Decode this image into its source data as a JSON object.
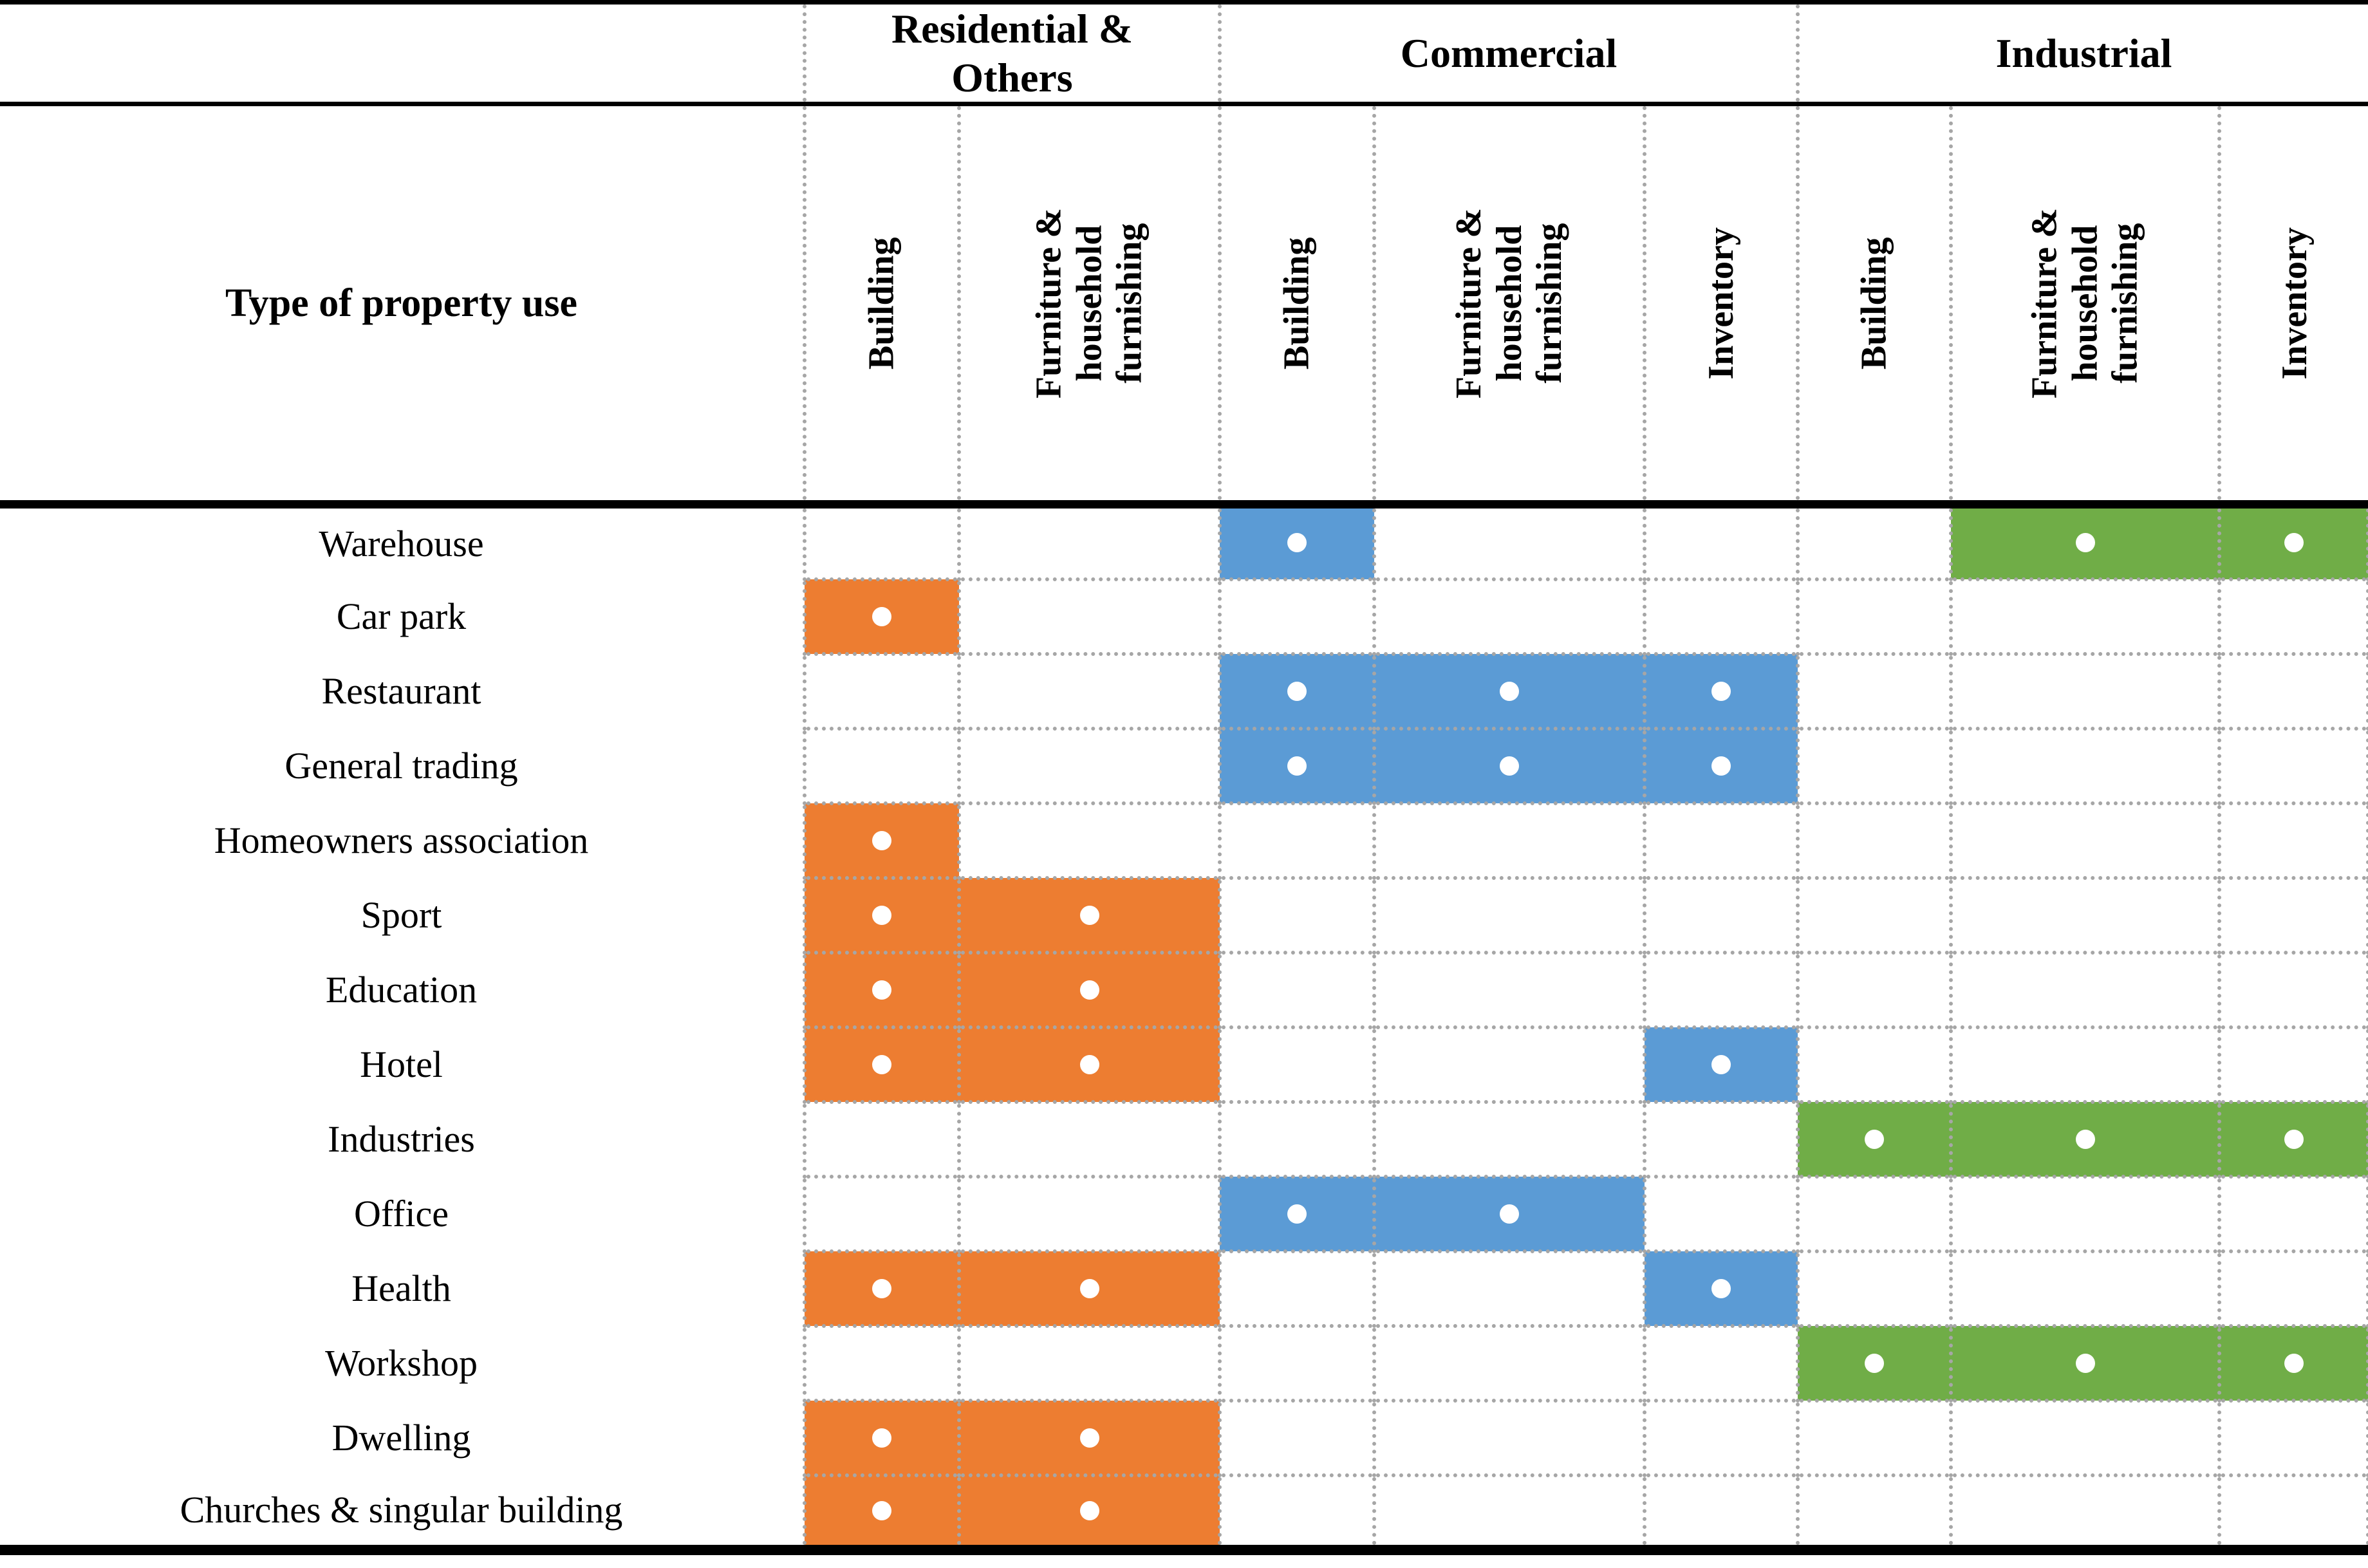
{
  "table": {
    "corner_label": "Type of property use",
    "groups": [
      {
        "label": "Residential & Others",
        "prefix": "res",
        "color": "#ED7D31",
        "columns": [
          {
            "key": "res_building",
            "label": "Building"
          },
          {
            "key": "res_furniture",
            "label": "Furniture & household furnishing"
          }
        ]
      },
      {
        "label": "Commercial",
        "prefix": "com",
        "color": "#5B9BD5",
        "columns": [
          {
            "key": "com_building",
            "label": "Building"
          },
          {
            "key": "com_furniture",
            "label": "Furniture & household furnishing"
          },
          {
            "key": "com_inventory",
            "label": "Inventory"
          }
        ]
      },
      {
        "label": "Industrial",
        "prefix": "ind",
        "color": "#70AD47",
        "columns": [
          {
            "key": "ind_building",
            "label": "Building"
          },
          {
            "key": "ind_furniture",
            "label": "Furniture & household furnishing"
          },
          {
            "key": "ind_inventory",
            "label": "Inventory"
          }
        ]
      }
    ],
    "rows": [
      {
        "label": "Warehouse",
        "marks": [
          "com_building",
          "ind_furniture",
          "ind_inventory"
        ]
      },
      {
        "label": "Car park",
        "marks": [
          "res_building"
        ]
      },
      {
        "label": "Restaurant",
        "marks": [
          "com_building",
          "com_furniture",
          "com_inventory"
        ]
      },
      {
        "label": "General trading",
        "marks": [
          "com_building",
          "com_furniture",
          "com_inventory"
        ]
      },
      {
        "label": "Homeowners association",
        "marks": [
          "res_building"
        ]
      },
      {
        "label": "Sport",
        "marks": [
          "res_building",
          "res_furniture"
        ]
      },
      {
        "label": "Education",
        "marks": [
          "res_building",
          "res_furniture"
        ]
      },
      {
        "label": "Hotel",
        "marks": [
          "res_building",
          "res_furniture",
          "com_inventory"
        ]
      },
      {
        "label": "Industries",
        "marks": [
          "ind_building",
          "ind_furniture",
          "ind_inventory"
        ]
      },
      {
        "label": "Office",
        "marks": [
          "com_building",
          "com_furniture"
        ]
      },
      {
        "label": "Health",
        "marks": [
          "res_building",
          "res_furniture",
          "com_inventory"
        ]
      },
      {
        "label": "Workshop",
        "marks": [
          "ind_building",
          "ind_furniture",
          "ind_inventory"
        ]
      },
      {
        "label": "Dwelling",
        "marks": [
          "res_building",
          "res_furniture"
        ]
      },
      {
        "label": "Churches & singular building",
        "marks": [
          "res_building",
          "res_furniture"
        ]
      }
    ],
    "style": {
      "mark_glyph": "white-dot",
      "dot_color": "#ffffff",
      "gridline_color": "#a6a6a6",
      "rule_color": "#000000",
      "residential_color": "#ED7D31",
      "commercial_color": "#5B9BD5",
      "industrial_color": "#70AD47"
    }
  }
}
